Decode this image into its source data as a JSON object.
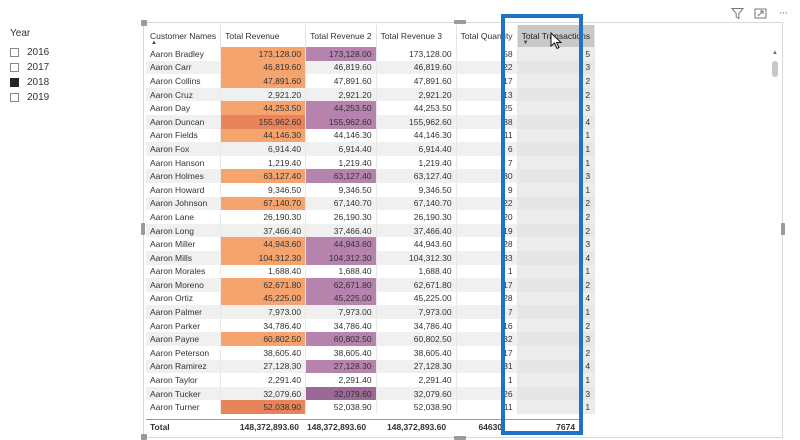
{
  "slicer": {
    "title": "Year",
    "items": [
      {
        "label": "2016",
        "checked": false
      },
      {
        "label": "2017",
        "checked": false
      },
      {
        "label": "2018",
        "checked": true
      },
      {
        "label": "2019",
        "checked": false
      }
    ]
  },
  "toolbar": {
    "icons": [
      "filter-icon",
      "focus-mode-icon",
      "more-options-icon"
    ],
    "more_label": "···"
  },
  "table": {
    "headers": [
      "Customer Names",
      "Total Revenue",
      "Total Revenue 2",
      "Total Revenue 3",
      "Total Quantity",
      "Total Transactions"
    ],
    "sort_markers": {
      "customer_names": "▲",
      "total_transactions": "▼"
    },
    "rows": [
      [
        "Aaron Bradley",
        "173,128.00",
        "173,128.00",
        "173,128.00",
        "58",
        "5"
      ],
      [
        "Aaron Carr",
        "46,819.60",
        "46,819.60",
        "46,819.60",
        "22",
        "3"
      ],
      [
        "Aaron Collins",
        "47,891.60",
        "47,891.60",
        "47,891.60",
        "17",
        "2"
      ],
      [
        "Aaron Cruz",
        "2,921.20",
        "2,921.20",
        "2,921.20",
        "13",
        "2"
      ],
      [
        "Aaron Day",
        "44,253.50",
        "44,253.50",
        "44,253.50",
        "25",
        "3"
      ],
      [
        "Aaron Duncan",
        "155,962.60",
        "155,962.60",
        "155,962.60",
        "38",
        "4"
      ],
      [
        "Aaron Fields",
        "44,146.30",
        "44,146.30",
        "44,146.30",
        "11",
        "1"
      ],
      [
        "Aaron Fox",
        "6,914.40",
        "6,914.40",
        "6,914.40",
        "6",
        "1"
      ],
      [
        "Aaron Hanson",
        "1,219.40",
        "1,219.40",
        "1,219.40",
        "7",
        "1"
      ],
      [
        "Aaron Holmes",
        "63,127.40",
        "63,127.40",
        "63,127.40",
        "30",
        "3"
      ],
      [
        "Aaron Howard",
        "9,346.50",
        "9,346.50",
        "9,346.50",
        "9",
        "1"
      ],
      [
        "Aaron Johnson",
        "67,140.70",
        "67,140.70",
        "67,140.70",
        "22",
        "2"
      ],
      [
        "Aaron Lane",
        "26,190.30",
        "26,190.30",
        "26,190.30",
        "20",
        "2"
      ],
      [
        "Aaron Long",
        "37,466.40",
        "37,466.40",
        "37,466.40",
        "19",
        "2"
      ],
      [
        "Aaron Miller",
        "44,943.60",
        "44,943.60",
        "44,943.60",
        "28",
        "3"
      ],
      [
        "Aaron Mills",
        "104,312.30",
        "104,312.30",
        "104,312.30",
        "33",
        "4"
      ],
      [
        "Aaron Morales",
        "1,688.40",
        "1,688.40",
        "1,688.40",
        "1",
        "1"
      ],
      [
        "Aaron Moreno",
        "62,671.80",
        "62,671.80",
        "62,671.80",
        "17",
        "2"
      ],
      [
        "Aaron Ortiz",
        "45,225.00",
        "45,225.00",
        "45,225.00",
        "28",
        "4"
      ],
      [
        "Aaron Palmer",
        "7,973.00",
        "7,973.00",
        "7,973.00",
        "7",
        "1"
      ],
      [
        "Aaron Parker",
        "34,786.40",
        "34,786.40",
        "34,786.40",
        "16",
        "2"
      ],
      [
        "Aaron Payne",
        "60,802.50",
        "60,802.50",
        "60,802.50",
        "32",
        "3"
      ],
      [
        "Aaron Peterson",
        "38,605.40",
        "38,605.40",
        "38,605.40",
        "17",
        "2"
      ],
      [
        "Aaron Ramirez",
        "27,128.30",
        "27,128.30",
        "27,128.30",
        "31",
        "4"
      ],
      [
        "Aaron Taylor",
        "2,291.40",
        "2,291.40",
        "2,291.40",
        "1",
        "1"
      ],
      [
        "Aaron Tucker",
        "32,079.60",
        "32,079.60",
        "32,079.60",
        "26",
        "3"
      ],
      [
        "Aaron Turner",
        "52,038.90",
        "52,038.90",
        "52,038.90",
        "11",
        "1"
      ]
    ],
    "orange_rows": [
      0,
      1,
      2,
      4,
      5,
      6,
      9,
      11,
      14,
      15,
      17,
      18,
      21,
      26
    ],
    "purple_rows": [
      0,
      4,
      5,
      9,
      14,
      15,
      17,
      18,
      21,
      23,
      25
    ],
    "total": {
      "label": "Total",
      "values": [
        "148,372,893.60",
        "148,372,893.60",
        "148,372,893.60",
        "64630",
        "7674"
      ]
    }
  },
  "colors": {
    "highlight_border": "#1e73c8",
    "orange": "#f5a46e",
    "purple": "#b583ad",
    "slicer_checked": "#252423"
  }
}
